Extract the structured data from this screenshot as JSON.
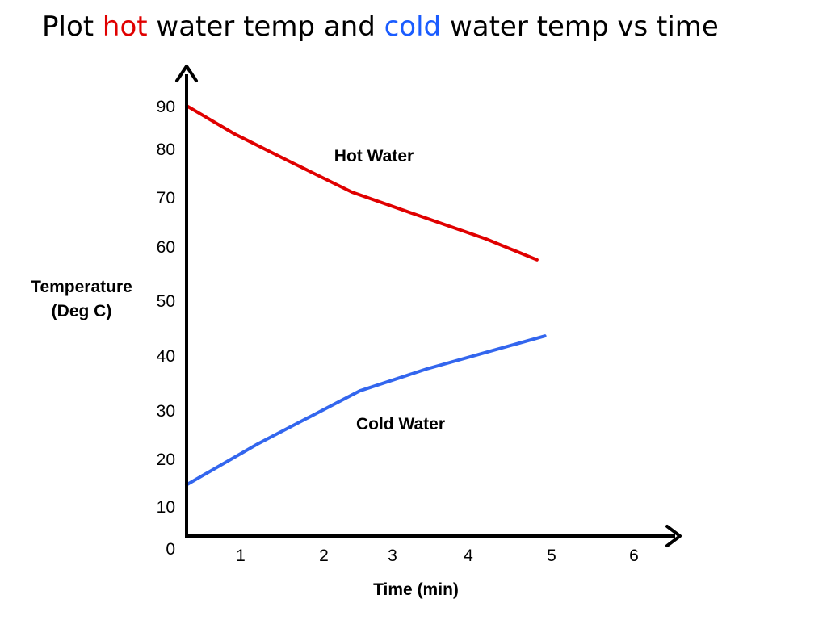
{
  "title": {
    "part1": "Plot ",
    "hot_word": "hot",
    "part2": " water temp and ",
    "cold_word": "cold",
    "part3": " water temp vs time",
    "hot_color": "#e00000",
    "cold_color": "#1a5cff"
  },
  "chart_data": {
    "type": "line",
    "title": "Plot hot water temp and cold water temp vs time",
    "xlabel": "Time (min)",
    "ylabel_lines": [
      "Temperature",
      "(Deg C)"
    ],
    "x_ticks": [
      {
        "value": 1,
        "label": "1"
      },
      {
        "value": 2,
        "label": "2"
      },
      {
        "value": 3,
        "label": "3"
      },
      {
        "value": 4,
        "label": "4"
      },
      {
        "value": 5,
        "label": "5"
      },
      {
        "value": 6,
        "label": "6"
      }
    ],
    "y_ticks": [
      {
        "value": 0,
        "label": "0"
      },
      {
        "value": 10,
        "label": "10"
      },
      {
        "value": 20,
        "label": "20"
      },
      {
        "value": 30,
        "label": "30"
      },
      {
        "value": 40,
        "label": "40"
      },
      {
        "value": 50,
        "label": "50"
      },
      {
        "value": 60,
        "label": "60"
      },
      {
        "value": 70,
        "label": "70"
      },
      {
        "value": 80,
        "label": "80"
      },
      {
        "value": 90,
        "label": "90"
      }
    ],
    "xlim": [
      0,
      6
    ],
    "ylim": [
      0,
      90
    ],
    "grid": false,
    "series": [
      {
        "name": "Hot Water",
        "color": "#e00000",
        "x": [
          0,
          0.6,
          1.35,
          2.1,
          2.9,
          3.8,
          4.45
        ],
        "y": [
          90,
          83.5,
          77,
          71,
          66.5,
          61.5,
          57.5
        ]
      },
      {
        "name": "Cold Water",
        "color": "#3366ee",
        "x": [
          0,
          0.9,
          2.2,
          3.05,
          3.8,
          4.55
        ],
        "y": [
          14.5,
          23,
          33.5,
          37.5,
          40.5,
          43.5
        ]
      }
    ]
  }
}
